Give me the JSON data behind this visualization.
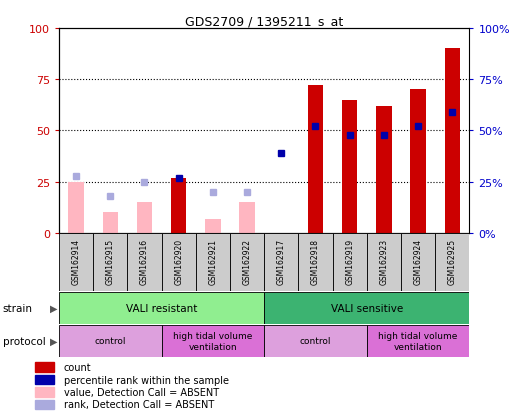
{
  "title": "GDS2709 / 1395211_s_at",
  "samples": [
    "GSM162914",
    "GSM162915",
    "GSM162916",
    "GSM162920",
    "GSM162921",
    "GSM162922",
    "GSM162917",
    "GSM162918",
    "GSM162919",
    "GSM162923",
    "GSM162924",
    "GSM162925"
  ],
  "count_values": [
    0,
    0,
    0,
    27,
    0,
    0,
    0,
    72,
    65,
    62,
    70,
    90
  ],
  "rank_values": [
    28,
    18,
    25,
    27,
    20,
    20,
    39,
    52,
    48,
    48,
    52,
    59
  ],
  "absent_value": [
    25,
    10,
    15,
    0,
    7,
    15,
    0,
    0,
    0,
    0,
    0,
    0
  ],
  "absent_rank": [
    28,
    18,
    25,
    0,
    20,
    20,
    0,
    0,
    0,
    0,
    0,
    0
  ],
  "is_absent": [
    true,
    true,
    true,
    false,
    true,
    true,
    false,
    false,
    false,
    false,
    false,
    false
  ],
  "strain_groups": [
    {
      "label": "VALI resistant",
      "start": 0,
      "end": 6,
      "color": "#90EE90"
    },
    {
      "label": "VALI sensitive",
      "start": 6,
      "end": 12,
      "color": "#3CB371"
    }
  ],
  "protocol_groups": [
    {
      "label": "control",
      "start": 0,
      "end": 3,
      "color": "#DDA0DD"
    },
    {
      "label": "high tidal volume\nventilation",
      "start": 3,
      "end": 6,
      "color": "#DA70D6"
    },
    {
      "label": "control",
      "start": 6,
      "end": 9,
      "color": "#DDA0DD"
    },
    {
      "label": "high tidal volume\nventilation",
      "start": 9,
      "end": 12,
      "color": "#DA70D6"
    }
  ],
  "ylim": [
    0,
    100
  ],
  "left_yticks": [
    0,
    25,
    50,
    75,
    100
  ],
  "right_yticks": [
    0,
    25,
    50,
    75,
    100
  ],
  "left_ylabel_color": "#CC0000",
  "right_ylabel_color": "#0000CC",
  "count_color": "#CC0000",
  "rank_color": "#0000AA",
  "absent_value_color": "#FFB6C1",
  "absent_rank_color": "#AAAADD",
  "sample_bg_color": "#CCCCCC",
  "legend_items": [
    {
      "color": "#CC0000",
      "label": "count"
    },
    {
      "color": "#0000AA",
      "label": "percentile rank within the sample"
    },
    {
      "color": "#FFB6C1",
      "label": "value, Detection Call = ABSENT"
    },
    {
      "color": "#AAAADD",
      "label": "rank, Detection Call = ABSENT"
    }
  ]
}
